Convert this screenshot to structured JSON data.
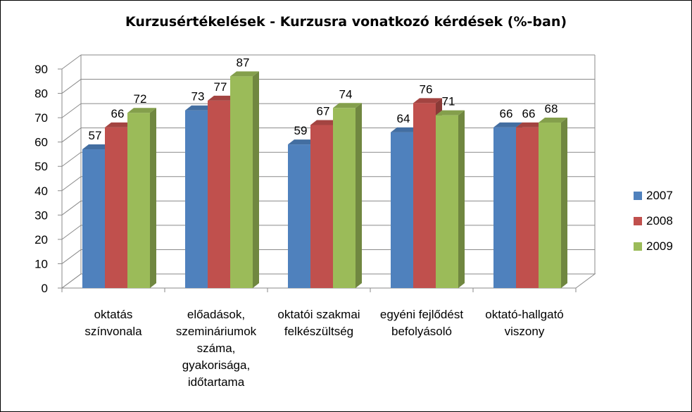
{
  "chart_data": {
    "type": "bar",
    "title": "Kurzusértékelések - Kurzusra vonatkozó kérdések (%-ban)",
    "categories": [
      [
        "oktatás",
        "színvonala"
      ],
      [
        "előadások,",
        "szemináriumok",
        "száma,",
        "gyakorisága,",
        "időtartama"
      ],
      [
        "oktatói szakmai",
        "felkészültség"
      ],
      [
        "egyéni fejlődést",
        "befolyásoló"
      ],
      [
        "oktató-hallgató",
        "viszony"
      ]
    ],
    "series": [
      {
        "name": "2007",
        "values": [
          57,
          73,
          59,
          64,
          66
        ],
        "color": "#4F81BD"
      },
      {
        "name": "2008",
        "values": [
          66,
          77,
          67,
          76,
          66
        ],
        "color": "#C0504D"
      },
      {
        "name": "2009",
        "values": [
          72,
          87,
          74,
          71,
          68
        ],
        "color": "#9BBB59"
      }
    ],
    "ylim": [
      0,
      90
    ],
    "yticks": [
      0,
      10,
      20,
      30,
      40,
      50,
      60,
      70,
      80,
      90
    ],
    "grid": true,
    "legend_position": "right"
  }
}
